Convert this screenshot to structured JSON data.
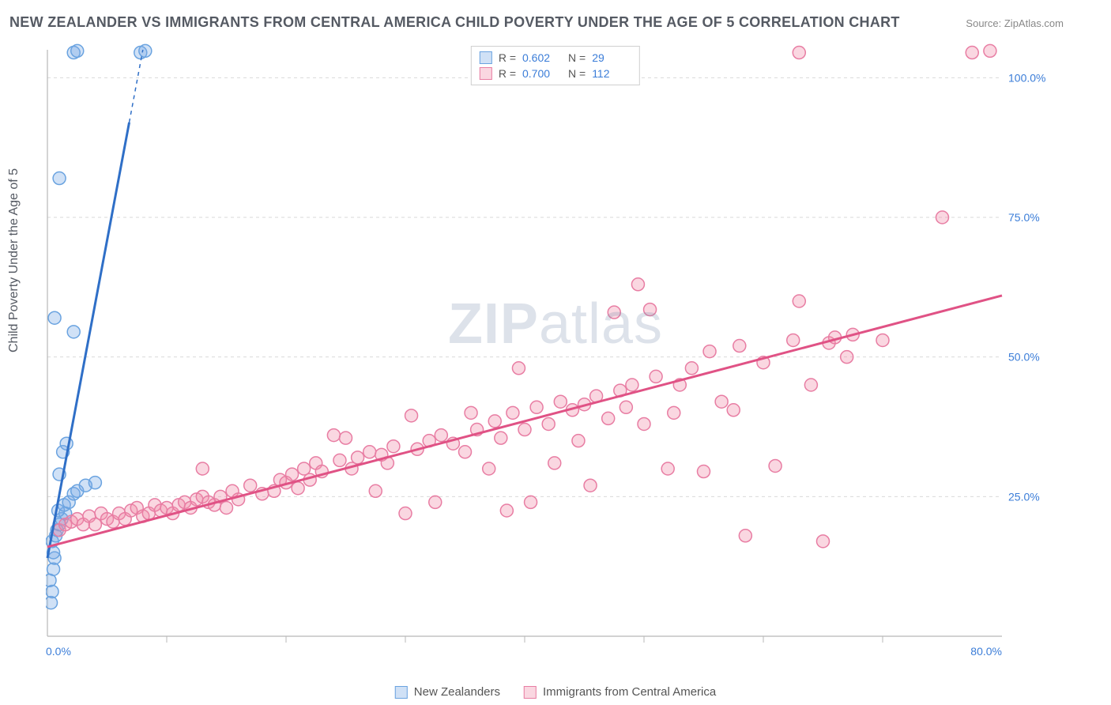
{
  "title": "NEW ZEALANDER VS IMMIGRANTS FROM CENTRAL AMERICA CHILD POVERTY UNDER THE AGE OF 5 CORRELATION CHART",
  "source_label": "Source:",
  "source_value": "ZipAtlas.com",
  "y_axis_label": "Child Poverty Under the Age of 5",
  "watermark_a": "ZIP",
  "watermark_b": "atlas",
  "chart": {
    "type": "scatter",
    "xlim": [
      0,
      80
    ],
    "ylim": [
      0,
      105
    ],
    "x_ticks": [
      0,
      80
    ],
    "x_tick_labels": [
      "0.0%",
      "80.0%"
    ],
    "y_ticks": [
      25,
      50,
      75,
      100
    ],
    "y_tick_labels": [
      "25.0%",
      "50.0%",
      "75.0%",
      "100.0%"
    ],
    "background_color": "#ffffff",
    "grid_color": "#d9d9d9",
    "axis_color": "#b8b8b8",
    "tick_label_color": "#3b7dd8",
    "marker_radius": 8,
    "marker_stroke_width": 1.5,
    "trend_line_width": 3,
    "series": [
      {
        "name": "New Zealanders",
        "color_fill": "rgba(120,170,230,0.35)",
        "color_stroke": "#6aa3e0",
        "trend_color": "#2f6fc7",
        "R": "0.602",
        "N": "29",
        "trend": {
          "x1": 0,
          "y1": 14,
          "x2": 8,
          "y2": 105
        },
        "points": [
          [
            0.3,
            6
          ],
          [
            0.4,
            8
          ],
          [
            0.2,
            10
          ],
          [
            0.5,
            12
          ],
          [
            0.6,
            14
          ],
          [
            0.4,
            17
          ],
          [
            0.7,
            18
          ],
          [
            0.8,
            19
          ],
          [
            1.0,
            20
          ],
          [
            1.2,
            21
          ],
          [
            1.5,
            22
          ],
          [
            0.9,
            22.5
          ],
          [
            1.4,
            23.5
          ],
          [
            1.8,
            24
          ],
          [
            2.2,
            25.5
          ],
          [
            2.5,
            26
          ],
          [
            3.2,
            27
          ],
          [
            4.0,
            27.5
          ],
          [
            1.0,
            29
          ],
          [
            1.3,
            33
          ],
          [
            1.6,
            34.5
          ],
          [
            2.2,
            54.5
          ],
          [
            0.6,
            57
          ],
          [
            1.0,
            82
          ],
          [
            2.2,
            104.5
          ],
          [
            2.5,
            104.8
          ],
          [
            7.8,
            104.5
          ],
          [
            8.2,
            104.8
          ],
          [
            0.5,
            15
          ]
        ]
      },
      {
        "name": "Immigrants from Central America",
        "color_fill": "rgba(240,140,170,0.35)",
        "color_stroke": "#e87da3",
        "trend_color": "#e05285",
        "R": "0.700",
        "N": "112",
        "trend": {
          "x1": 0,
          "y1": 16,
          "x2": 80,
          "y2": 61
        },
        "points": [
          [
            1,
            19
          ],
          [
            1.5,
            20
          ],
          [
            2,
            20.5
          ],
          [
            2.5,
            21
          ],
          [
            3,
            20
          ],
          [
            3.5,
            21.5
          ],
          [
            4,
            20
          ],
          [
            4.5,
            22
          ],
          [
            5,
            21
          ],
          [
            5.5,
            20.5
          ],
          [
            6,
            22
          ],
          [
            6.5,
            21
          ],
          [
            7,
            22.5
          ],
          [
            7.5,
            23
          ],
          [
            8,
            21.5
          ],
          [
            8.5,
            22
          ],
          [
            9,
            23.5
          ],
          [
            9.5,
            22.5
          ],
          [
            10,
            23
          ],
          [
            10.5,
            22
          ],
          [
            11,
            23.5
          ],
          [
            11.5,
            24
          ],
          [
            12,
            23
          ],
          [
            12.5,
            24.5
          ],
          [
            13,
            25
          ],
          [
            13.5,
            24
          ],
          [
            14,
            23.5
          ],
          [
            14.5,
            25
          ],
          [
            15,
            23
          ],
          [
            15.5,
            26
          ],
          [
            16,
            24.5
          ],
          [
            17,
            27
          ],
          [
            18,
            25.5
          ],
          [
            13,
            30
          ],
          [
            19,
            26
          ],
          [
            19.5,
            28
          ],
          [
            20,
            27.5
          ],
          [
            20.5,
            29
          ],
          [
            21,
            26.5
          ],
          [
            21.5,
            30
          ],
          [
            22,
            28
          ],
          [
            22.5,
            31
          ],
          [
            23,
            29.5
          ],
          [
            24,
            36
          ],
          [
            24.5,
            31.5
          ],
          [
            25,
            35.5
          ],
          [
            25.5,
            30
          ],
          [
            26,
            32
          ],
          [
            27,
            33
          ],
          [
            27.5,
            26
          ],
          [
            28,
            32.5
          ],
          [
            28.5,
            31
          ],
          [
            29,
            34
          ],
          [
            30,
            22
          ],
          [
            30.5,
            39.5
          ],
          [
            31,
            33.5
          ],
          [
            32,
            35
          ],
          [
            32.5,
            24
          ],
          [
            33,
            36
          ],
          [
            34,
            34.5
          ],
          [
            35,
            33
          ],
          [
            35.5,
            40
          ],
          [
            36,
            37
          ],
          [
            37,
            30
          ],
          [
            37.5,
            38.5
          ],
          [
            38,
            35.5
          ],
          [
            38.5,
            22.5
          ],
          [
            39,
            40
          ],
          [
            39.5,
            48
          ],
          [
            40,
            37
          ],
          [
            40.5,
            24
          ],
          [
            41,
            41
          ],
          [
            42,
            38
          ],
          [
            42.5,
            31
          ],
          [
            43,
            42
          ],
          [
            44,
            40.5
          ],
          [
            44.5,
            35
          ],
          [
            45,
            41.5
          ],
          [
            45.5,
            27
          ],
          [
            46,
            43
          ],
          [
            47,
            39
          ],
          [
            47.5,
            58
          ],
          [
            48,
            44
          ],
          [
            48.5,
            41
          ],
          [
            49,
            45
          ],
          [
            49.5,
            63
          ],
          [
            50,
            38
          ],
          [
            50.5,
            58.5
          ],
          [
            51,
            46.5
          ],
          [
            52,
            30
          ],
          [
            52.5,
            40
          ],
          [
            53,
            45
          ],
          [
            54,
            48
          ],
          [
            55,
            29.5
          ],
          [
            55.5,
            51
          ],
          [
            56.5,
            42
          ],
          [
            57.5,
            40.5
          ],
          [
            58,
            52
          ],
          [
            58.5,
            18
          ],
          [
            60,
            49
          ],
          [
            61,
            30.5
          ],
          [
            62.5,
            53
          ],
          [
            63,
            60
          ],
          [
            64,
            45
          ],
          [
            65,
            17
          ],
          [
            65.5,
            52.5
          ],
          [
            66,
            53.5
          ],
          [
            67,
            50
          ],
          [
            67.5,
            54
          ],
          [
            70,
            53
          ],
          [
            63,
            104.5
          ],
          [
            75,
            75
          ],
          [
            77.5,
            104.5
          ],
          [
            79,
            104.8
          ]
        ]
      }
    ]
  },
  "stats_box": {
    "R_label": "R =",
    "N_label": "N ="
  },
  "bottom_legend": {
    "items": [
      "New Zealanders",
      "Immigrants from Central America"
    ]
  }
}
